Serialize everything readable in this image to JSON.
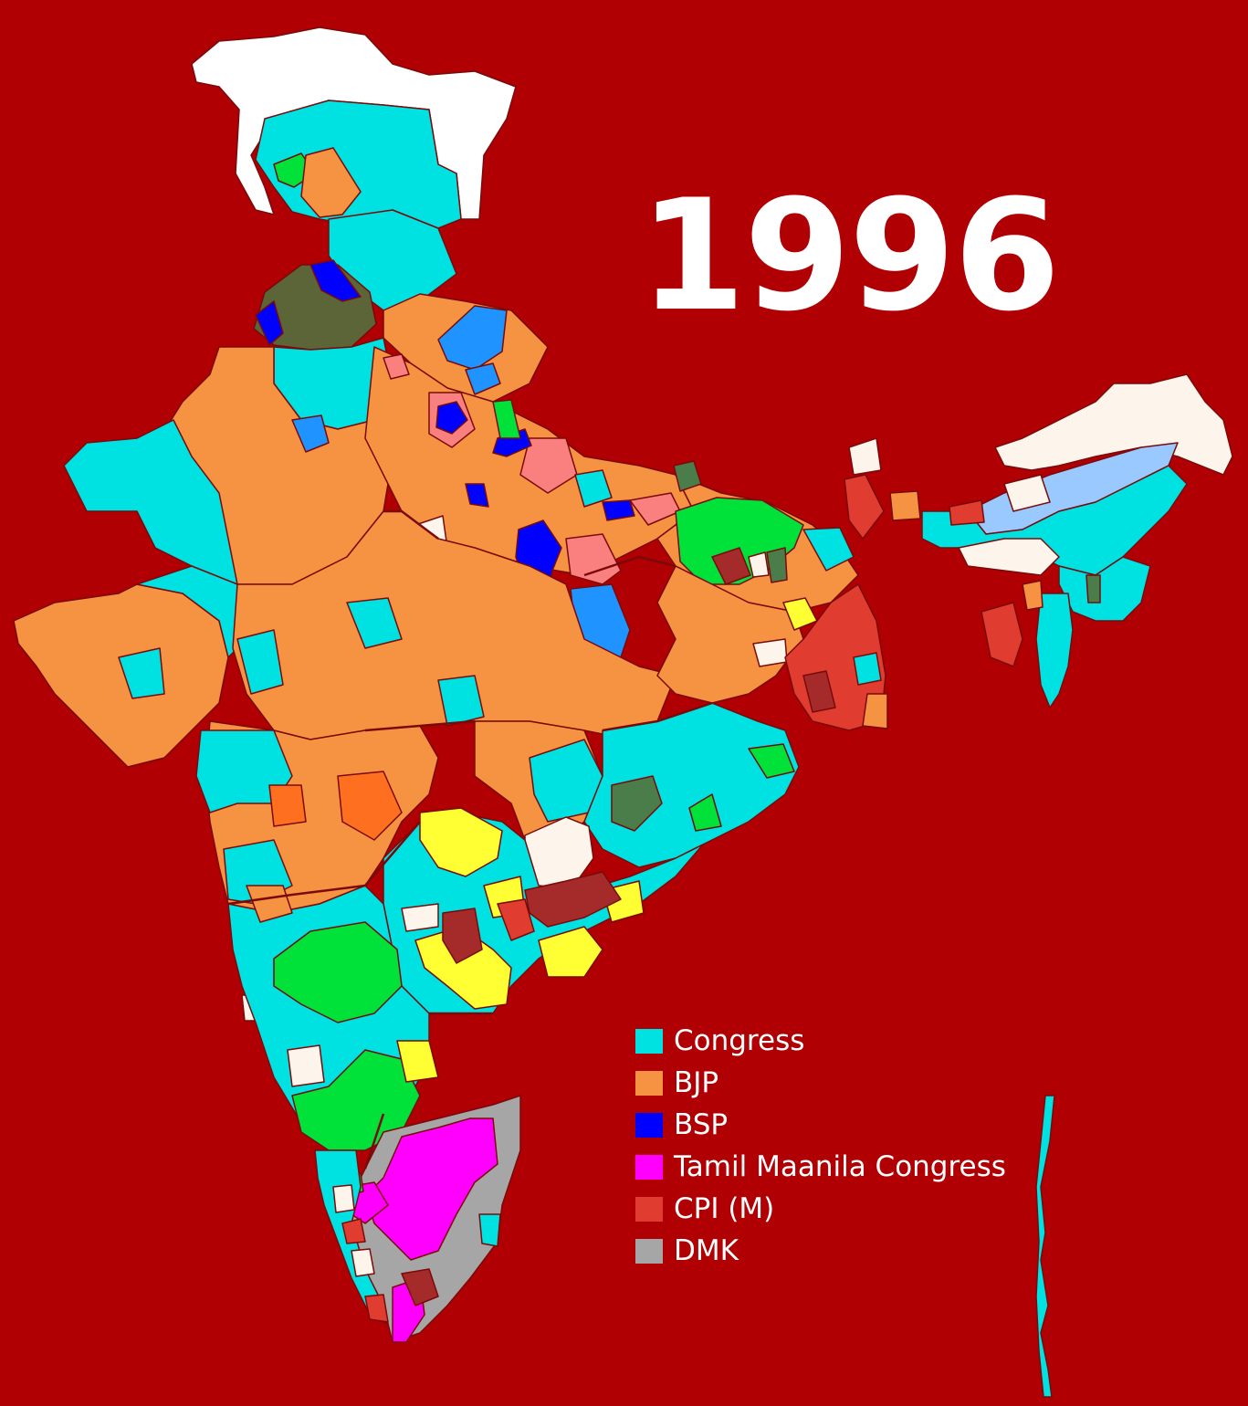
{
  "title": "1996",
  "colors": {
    "background": "#b00004",
    "border": "#7a0a0a",
    "congress": "#00e1e1",
    "bjp": "#f69343",
    "bsp": "#0000ff",
    "tmc": "#ff00ff",
    "cpim": "#e03c2f",
    "dmk": "#a6a6a6",
    "unshown": "#ffffff",
    "janata_dal": "#00e13a",
    "tdp": "#ffff33",
    "samajwadi": "#fa8080",
    "akali_dal": "#5c6538",
    "other_blue": "#1f93ff",
    "other_light": "#fdf5ec",
    "cpi": "#a52a2a",
    "other_green": "#4b7d4b",
    "agp": "#99c9ff",
    "shiv_sena": "#ff6f20"
  },
  "legend": [
    {
      "label": "Congress",
      "color": "#00e1e1"
    },
    {
      "label": "BJP",
      "color": "#f69343"
    },
    {
      "label": "BSP",
      "color": "#0000ff"
    },
    {
      "label": "Tamil Maanila Congress",
      "color": "#ff00ff"
    },
    {
      "label": "CPI (M)",
      "color": "#e03c2f"
    },
    {
      "label": "DMK",
      "color": "#a6a6a6"
    }
  ]
}
